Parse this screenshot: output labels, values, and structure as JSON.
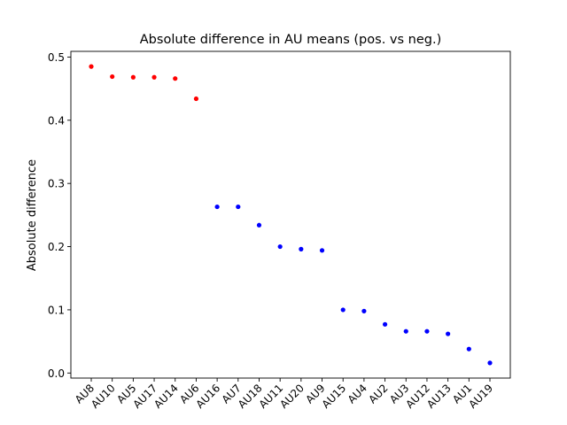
{
  "chart_data": {
    "type": "scatter",
    "title": "Absolute difference in AU means (pos. vs neg.)",
    "xlabel": "",
    "ylabel": "Absolute difference",
    "categories": [
      "AU8",
      "AU10",
      "AU5",
      "AU17",
      "AU14",
      "AU6",
      "AU16",
      "AU7",
      "AU18",
      "AU11",
      "AU20",
      "AU9",
      "AU15",
      "AU4",
      "AU2",
      "AU3",
      "AU12",
      "AU13",
      "AU1",
      "AU19"
    ],
    "values": [
      0.485,
      0.469,
      0.468,
      0.468,
      0.466,
      0.434,
      0.263,
      0.263,
      0.234,
      0.2,
      0.196,
      0.194,
      0.1,
      0.098,
      0.077,
      0.066,
      0.066,
      0.062,
      0.038,
      0.016
    ],
    "point_colors": [
      "#ff0000",
      "#ff0000",
      "#ff0000",
      "#ff0000",
      "#ff0000",
      "#ff0000",
      "#0000ff",
      "#0000ff",
      "#0000ff",
      "#0000ff",
      "#0000ff",
      "#0000ff",
      "#0000ff",
      "#0000ff",
      "#0000ff",
      "#0000ff",
      "#0000ff",
      "#0000ff",
      "#0000ff",
      "#0000ff"
    ],
    "yticks": [
      "0.0",
      "0.1",
      "0.2",
      "0.3",
      "0.4",
      "0.5"
    ],
    "ylim": [
      -0.008,
      0.509
    ],
    "grid": false,
    "legend": "none"
  }
}
